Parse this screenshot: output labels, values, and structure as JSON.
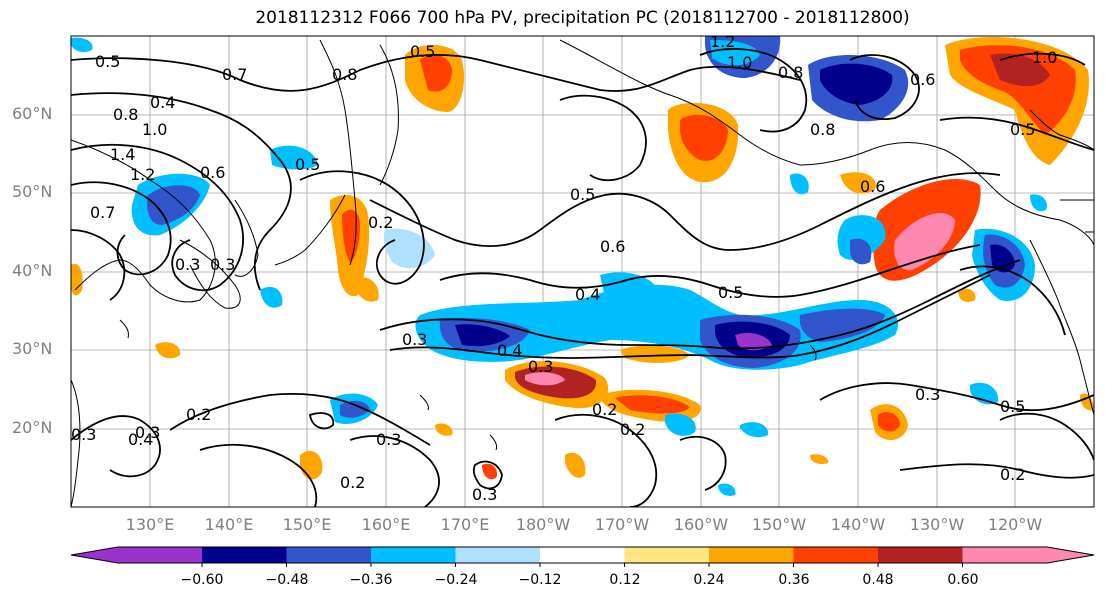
{
  "title": "2018112312 F066 700 hPa PV, precipitation PC (2018112700 - 2018112800)",
  "lat_labels": [
    "60°N",
    "50°N",
    "40°N",
    "30°N",
    "20°N"
  ],
  "lon_labels": [
    "130°E",
    "140°E",
    "150°E",
    "160°E",
    "170°E",
    "180°W",
    "170°W",
    "160°W",
    "150°W",
    "140°W",
    "130°W",
    "120°W"
  ],
  "colorbar": {
    "labels": [
      "−0.60",
      "−0.48",
      "−0.36",
      "−0.24",
      "−0.12",
      "0.12",
      "0.24",
      "0.36",
      "0.48",
      "0.60"
    ],
    "colors": [
      "#9933cc",
      "#00008b",
      "#3355cc",
      "#00bfff",
      "#b0e0ff",
      "#ffffff",
      "#ffe680",
      "#ffa500",
      "#ff4000",
      "#b22222",
      "#ff88b0"
    ]
  },
  "contour_labels": [
    "0.5",
    "0.5",
    "0.7",
    "0.4",
    "0.8",
    "1.0",
    "1.4",
    "1.2",
    "0.6",
    "0.7",
    "0.3",
    "0.2",
    "0.5",
    "0.8",
    "1.2",
    "1.0",
    "0.8",
    "0.6",
    "0.8",
    "0.5",
    "0.6",
    "1.0",
    "0.5",
    "0.6",
    "0.5",
    "0.4",
    "0.3",
    "0.4",
    "0.3",
    "0.2",
    "0.4",
    "0.3",
    "0.2",
    "0.3",
    "0.3",
    "0.2",
    "0.3",
    "0.5",
    "0.2",
    "0.3",
    "0.2",
    "0.3"
  ]
}
